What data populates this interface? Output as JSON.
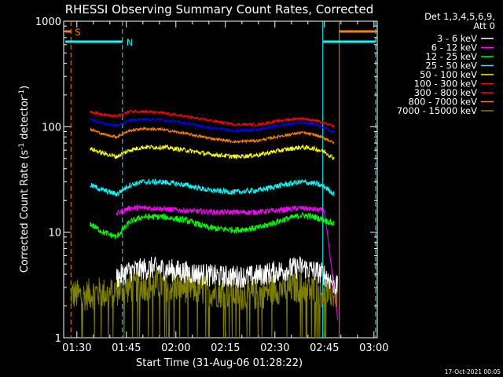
{
  "chart_data": {
    "type": "line",
    "title": "RHESSI Observing Summary Count Rates, Corrected",
    "xlabel": "Start Time (31-Aug-06 01:28:22)",
    "ylabel_main": "Corrected Count Rate (s",
    "ylabel_sup1": "-1",
    "ylabel_mid": " detector",
    "ylabel_sup2": "-1",
    "ylabel_end": ")",
    "yscale": "log",
    "ylim": [
      1,
      1000
    ],
    "xlim_minutes": [
      -2,
      93
    ],
    "x_ticks": [
      {
        "m": 2,
        "label": "01:30"
      },
      {
        "m": 17,
        "label": "01:45"
      },
      {
        "m": 32,
        "label": "02:00"
      },
      {
        "m": 47,
        "label": "02:15"
      },
      {
        "m": 62,
        "label": "02:30"
      },
      {
        "m": 77,
        "label": "02:45"
      },
      {
        "m": 92,
        "label": "03:00"
      }
    ],
    "y_ticks": [
      {
        "v": 1,
        "label": "1"
      },
      {
        "v": 10,
        "label": "10"
      },
      {
        "v": 100,
        "label": "100"
      },
      {
        "v": 1000,
        "label": "1000"
      }
    ],
    "legend_header": [
      "Det 1,3,4,5,6,9,",
      "Att 0"
    ],
    "legend_position": "right",
    "series": [
      {
        "name": "3 - 6 keV",
        "color": "#ffffff",
        "x": [
          14,
          18,
          25,
          35,
          45,
          55,
          62,
          70,
          77,
          81
        ],
        "y": [
          3.7,
          4.3,
          4.6,
          4.2,
          3.8,
          3.8,
          4.2,
          4.7,
          4.0,
          3.0
        ]
      },
      {
        "name": "6 - 12 keV",
        "color": "#ff00ff",
        "x": [
          14,
          18,
          25,
          35,
          45,
          55,
          62,
          70,
          77,
          81
        ],
        "y": [
          15,
          17,
          17,
          16,
          15.5,
          15.5,
          16,
          17,
          16,
          1.5
        ]
      },
      {
        "name": "12 - 25 keV",
        "color": "#00ff00",
        "x": [
          6,
          10,
          14,
          18,
          22,
          28,
          35,
          42,
          50,
          57,
          64,
          70,
          74,
          77,
          80
        ],
        "y": [
          12,
          10,
          9,
          12.5,
          14,
          14,
          13,
          11,
          10.5,
          11,
          13,
          14.5,
          14,
          13,
          12
        ]
      },
      {
        "name": "25 - 50 keV",
        "color": "#00ffff",
        "x": [
          6,
          10,
          14,
          18,
          22,
          28,
          35,
          42,
          50,
          57,
          64,
          70,
          74,
          77,
          80
        ],
        "y": [
          28,
          25,
          23,
          28,
          30,
          30,
          28,
          25,
          24,
          25,
          28,
          30,
          29,
          27,
          23
        ]
      },
      {
        "name": "50 - 100 keV",
        "color": "#ffff00",
        "x": [
          6,
          10,
          14,
          18,
          22,
          28,
          35,
          42,
          50,
          57,
          64,
          70,
          74,
          77,
          80
        ],
        "y": [
          62,
          56,
          52,
          60,
          64,
          64,
          60,
          55,
          52,
          54,
          60,
          64,
          62,
          58,
          50
        ]
      },
      {
        "name": "100 - 300 keV",
        "color": "#ff0000",
        "x": [
          6,
          10,
          14,
          18,
          22,
          28,
          35,
          42,
          50,
          57,
          64,
          70,
          74,
          77,
          80
        ],
        "y": [
          140,
          130,
          125,
          140,
          140,
          135,
          125,
          115,
          105,
          105,
          115,
          120,
          115,
          108,
          100
        ]
      },
      {
        "name": "300 - 800 keV",
        "color": "#ff0000",
        "x": [],
        "y": []
      },
      {
        "name": "800 - 7000 keV",
        "color": "#ff8000",
        "x": [
          6,
          10,
          14,
          18,
          22,
          28,
          35,
          42,
          50,
          57,
          64,
          70,
          74,
          77,
          80
        ],
        "y": [
          95,
          85,
          80,
          92,
          96,
          94,
          86,
          78,
          72,
          74,
          82,
          88,
          84,
          78,
          70
        ]
      },
      {
        "name": "7000 - 15000 keV",
        "color": "#808000",
        "x": [
          0,
          4,
          8,
          12,
          14,
          18,
          25,
          35,
          45,
          55,
          62,
          70,
          77,
          81
        ],
        "y": [
          2.6,
          2.5,
          2.7,
          2.6,
          2.8,
          3.0,
          3.2,
          3.0,
          2.7,
          2.5,
          2.9,
          3.0,
          2.7,
          2.6
        ]
      },
      {
        "name": "",
        "color": "#0000ff",
        "x": [
          6,
          10,
          14,
          18,
          22,
          28,
          35,
          42,
          50,
          57,
          64,
          70,
          74,
          77,
          80
        ],
        "y": [
          118,
          108,
          102,
          115,
          118,
          116,
          108,
          98,
          92,
          94,
          104,
          110,
          106,
          98,
          88
        ]
      }
    ],
    "markers": [
      {
        "label": "S",
        "color": "#ff8000",
        "x": 0.2,
        "bar_from": -1.5,
        "bar_to": 0.2,
        "bar_y": 800
      },
      {
        "label": "N",
        "color": "#00ffff",
        "x": 15.8,
        "bar_from": -1.5,
        "bar_to": 15.8,
        "bar_y": 640
      }
    ],
    "vlines": [
      {
        "x": 0.2,
        "color": "#ff8000",
        "dash": true
      },
      {
        "x": 15.8,
        "color": "#00ffff",
        "dash": true
      },
      {
        "x": 76.5,
        "color": "#00ffff",
        "dash": false
      },
      {
        "x": 81.5,
        "color": "#ff8000",
        "dash": false
      },
      {
        "x": 92.5,
        "color": "#00ffff",
        "dash": true
      }
    ],
    "hbars": [
      {
        "from": 76.5,
        "to": 92.5,
        "y": 640,
        "color": "#00ffff"
      },
      {
        "from": 81.5,
        "to": 92.5,
        "y": 800,
        "color": "#ff8000"
      }
    ],
    "footer_date": "17-Oct-2021 00:05"
  }
}
